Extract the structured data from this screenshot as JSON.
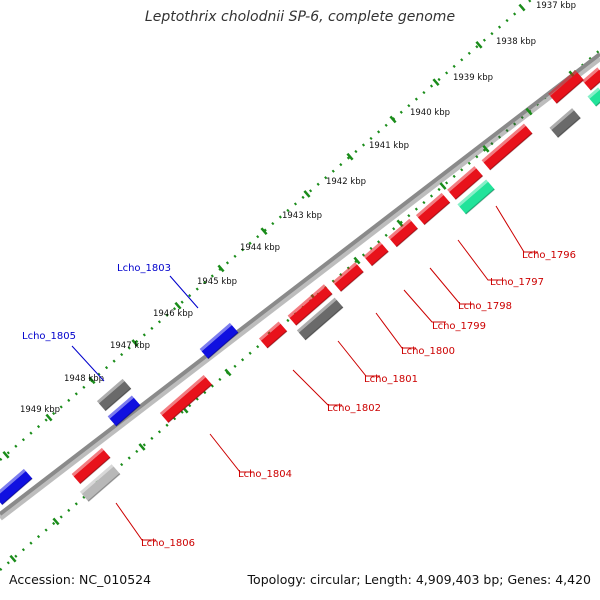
{
  "title": "Leptothrix cholodnii SP-6, complete genome",
  "footer": {
    "accession_label": "Accession:",
    "accession": "NC_010524",
    "topology_label": "Topology:",
    "topology": "circular",
    "length_label": "Length:",
    "length": "4,909,403 bp",
    "genes_label": "Genes:",
    "genes": "4,420"
  },
  "colors": {
    "forward_cds": "#e8121b",
    "reverse_cds": "#1010e0",
    "gray_feature": "#6a6a6a",
    "rna_feature": "#22e39a",
    "light_gray_feature": "#b8b8b8",
    "backbone": "#8a8a8a",
    "ruler": "#1a8c1a",
    "forward_label": "#cc0000",
    "reverse_label": "#0000cc"
  },
  "scale_ticks": [
    "1937 kbp",
    "1938 kbp",
    "1939 kbp",
    "1940 kbp",
    "1941 kbp",
    "1942 kbp",
    "1943 kbp",
    "1944 kbp",
    "1945 kbp",
    "1946 kbp",
    "1947 kbp",
    "1948 kbp",
    "1949 kbp"
  ],
  "gene_labels": {
    "forward": [
      "Lcho_1796",
      "Lcho_1797",
      "Lcho_1798",
      "Lcho_1799",
      "Lcho_1800",
      "Lcho_1801",
      "Lcho_1802",
      "Lcho_1804",
      "Lcho_1806"
    ],
    "reverse": [
      "Lcho_1803",
      "Lcho_1805"
    ]
  }
}
